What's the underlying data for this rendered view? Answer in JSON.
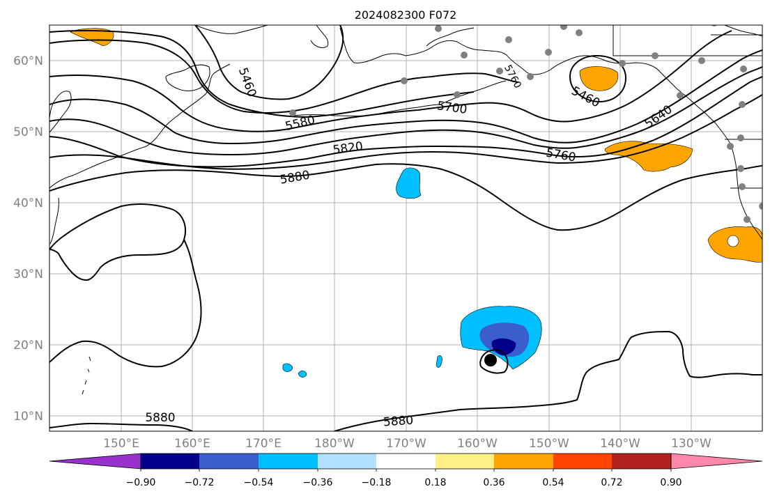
{
  "title": "2024082300 F072",
  "lon_labels": [
    "150°E",
    "160°E",
    "170°E",
    "180°W",
    "170°W",
    "160°W",
    "150°W",
    "140°W",
    "130°W"
  ],
  "lat_labels": [
    "60°N",
    "50°N",
    "40°N",
    "30°N",
    "20°N",
    "10°N"
  ],
  "contour_labels": [
    "5460",
    "5460",
    "5580",
    "5640",
    "5700",
    "5760",
    "5820",
    "5880",
    "5880",
    "5880",
    "5760"
  ],
  "colorbar": {
    "ticks": [
      "−0.90",
      "−0.72",
      "−0.54",
      "−0.36",
      "−0.18",
      "0.18",
      "0.36",
      "0.54",
      "0.72",
      "0.90"
    ],
    "colors": [
      "#9932cc",
      "#00008b",
      "#3a5fcd",
      "#00bfff",
      "#b0e2ff",
      "#ffffff",
      "#fff08a",
      "#ffa500",
      "#ff4500",
      "#b22222",
      "#ff88aa"
    ]
  },
  "map": {
    "stations": "gray station markers",
    "storm_marker": "black dot"
  }
}
